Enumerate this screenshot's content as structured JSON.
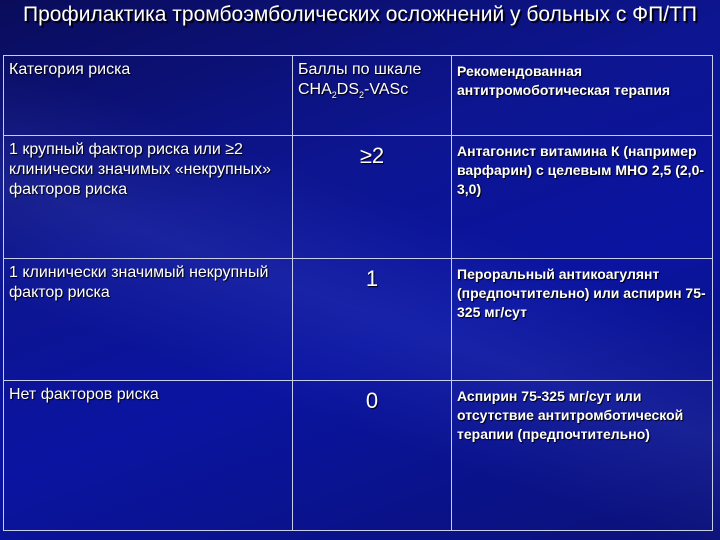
{
  "title": "Профилактика тромбоэмболических осложнений у больных с ФП/ТП",
  "table": {
    "header": {
      "category": "Категория риска",
      "score_prefix": "Баллы по шкале CHA",
      "score_sub1": "2",
      "score_mid": "DS",
      "score_sub2": "2",
      "score_suffix": "-VASc",
      "therapy": "Рекомендованная антитромоботическая терапия"
    },
    "rows": [
      {
        "category": "1 крупный фактор риска или ≥2 клинически значимых «некрупных» факторов риска",
        "score": "≥2",
        "therapy": "Антагонист витамина К (например варфарин) с целевым МНО 2,5 (2,0-3,0)"
      },
      {
        "category": "1 клинически значимый некрупный фактор риска",
        "score": "1",
        "therapy": "Пероральный антикоагулянт (предпочтительно) или аспирин 75-325 мг/сут"
      },
      {
        "category": "Нет факторов риска",
        "score": "0",
        "therapy": "Аспирин 75-325 мг/сут или отсутствие антитромботической терапии (предпочтительно)"
      }
    ]
  }
}
